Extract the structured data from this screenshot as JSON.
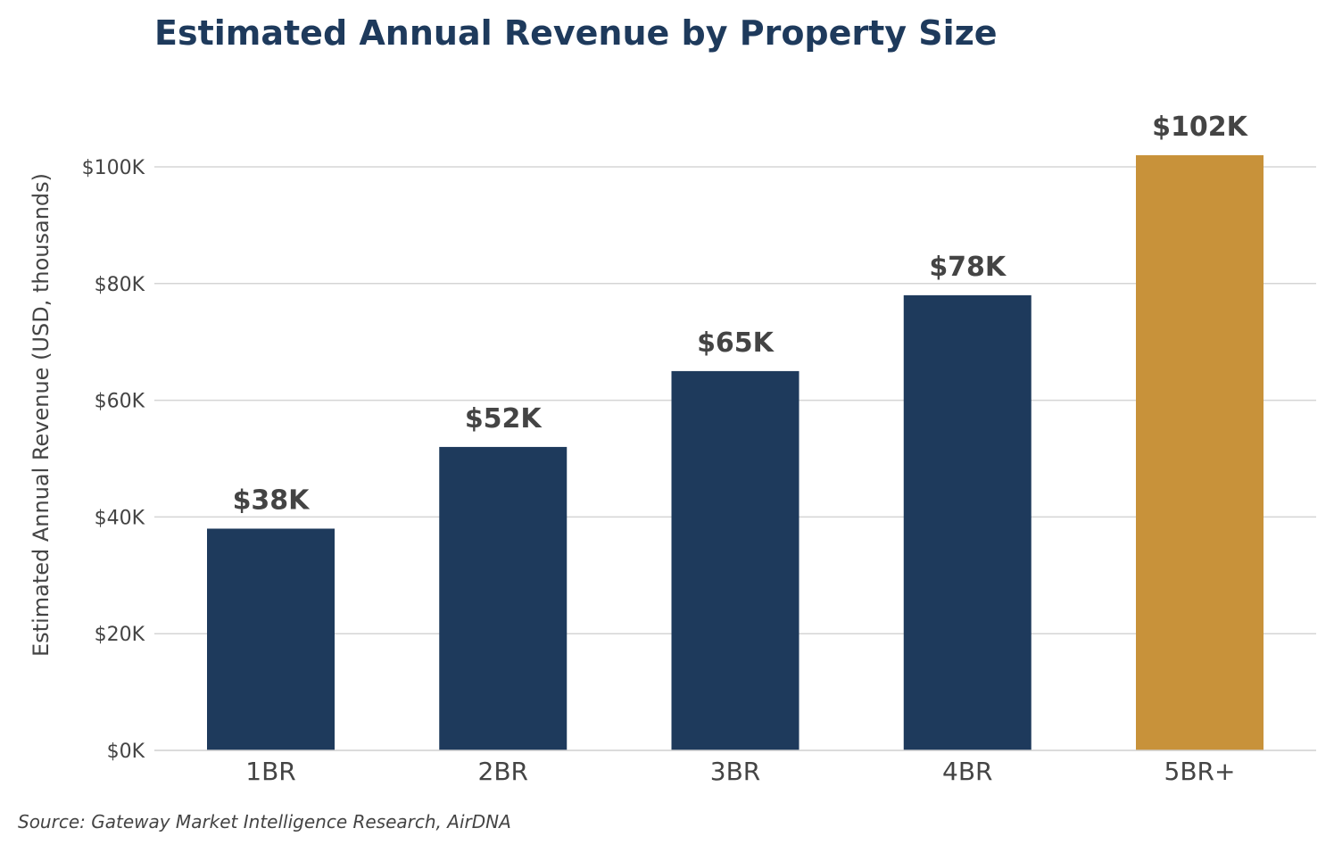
{
  "chart_data": {
    "type": "bar",
    "title": "Estimated Annual Revenue by Property Size",
    "ylabel": "Estimated Annual Revenue (USD, thousands)",
    "xlabel": "",
    "categories": [
      "1BR",
      "2BR",
      "3BR",
      "4BR",
      "5BR+"
    ],
    "values": [
      38,
      52,
      65,
      78,
      102
    ],
    "data_labels": [
      "$38K",
      "$52K",
      "$65K",
      "$78K",
      "$102K"
    ],
    "ylim": [
      0,
      102
    ],
    "yticks": [
      0,
      20,
      40,
      60,
      80,
      100
    ],
    "ytick_labels": [
      "$0K",
      "$20K",
      "$40K",
      "$60K",
      "$80K",
      "$100K"
    ],
    "grid": true,
    "legend": "none",
    "colors": {
      "default_bar": "#1e3a5c",
      "highlight_bar": "#c8923a",
      "title": "#1e3a5c",
      "text": "#444444",
      "grid": "#d5d5d5"
    },
    "highlight_index": 4,
    "source": "Source: Gateway Market Intelligence Research, AirDNA"
  }
}
